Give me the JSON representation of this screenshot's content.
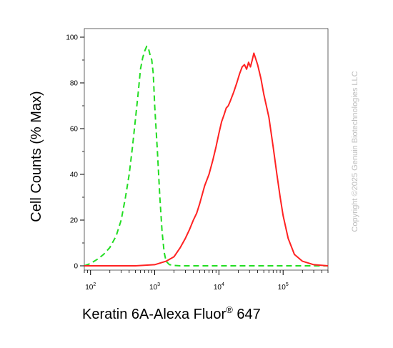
{
  "chart_data": {
    "type": "line",
    "ylabel": "Cell Counts (% Max)",
    "xlabel": {
      "text": "Keratin 6A-Alexa Fluor",
      "superscript": "®",
      "suffix": " 647"
    },
    "x_scale": "log",
    "xlim": [
      80,
      500000
    ],
    "ylim": [
      0,
      105
    ],
    "y_ticks": [
      0,
      20,
      40,
      60,
      80,
      100
    ],
    "x_ticks": [
      {
        "value": 100,
        "base": "10",
        "exp": "2"
      },
      {
        "value": 1000,
        "base": "10",
        "exp": "3"
      },
      {
        "value": 10000,
        "base": "10",
        "exp": "4"
      },
      {
        "value": 100000,
        "base": "10",
        "exp": "5"
      }
    ],
    "grid": false,
    "series": [
      {
        "color": "#22dd22",
        "dash": "dashed",
        "x": [
          80,
          100,
          130,
          160,
          200,
          250,
          300,
          350,
          400,
          450,
          500,
          550,
          600,
          650,
          700,
          750,
          800,
          850,
          900,
          950,
          1000,
          1100,
          1200,
          1300,
          1400,
          1500,
          1700,
          2000,
          2500,
          5000,
          10000,
          50000,
          200000,
          500000
        ],
        "y": [
          0,
          1,
          3,
          5,
          8,
          13,
          20,
          30,
          40,
          52,
          64,
          75,
          86,
          91,
          94,
          96,
          95,
          92,
          90,
          84,
          70,
          50,
          30,
          15,
          6,
          2,
          0.5,
          0.2,
          0,
          0,
          0,
          0,
          0,
          0
        ]
      },
      {
        "color": "#ff2222",
        "dash": "solid",
        "x": [
          80,
          150,
          500,
          1000,
          1500,
          2000,
          2500,
          3000,
          3500,
          4000,
          4500,
          5000,
          6000,
          7000,
          8000,
          9000,
          10000,
          11000,
          12000,
          13000,
          14000,
          15000,
          17000,
          19000,
          21000,
          23000,
          25000,
          27000,
          29000,
          31000,
          33000,
          35000,
          37000,
          40000,
          45000,
          50000,
          60000,
          70000,
          80000,
          90000,
          100000,
          120000,
          150000,
          200000,
          300000,
          500000
        ],
        "y": [
          0,
          0,
          0,
          0.5,
          2,
          4,
          8,
          12,
          16,
          20,
          23,
          27,
          35,
          40,
          46,
          52,
          58,
          63,
          66,
          69,
          70,
          72,
          76,
          80,
          84,
          87,
          88,
          86,
          89,
          87,
          90,
          93,
          91,
          88,
          82,
          75,
          65,
          52,
          40,
          30,
          22,
          12,
          5,
          2,
          0.5,
          0
        ]
      }
    ],
    "watermark": "Copyright ©2025 Genuin Biotechnologies LLC"
  }
}
